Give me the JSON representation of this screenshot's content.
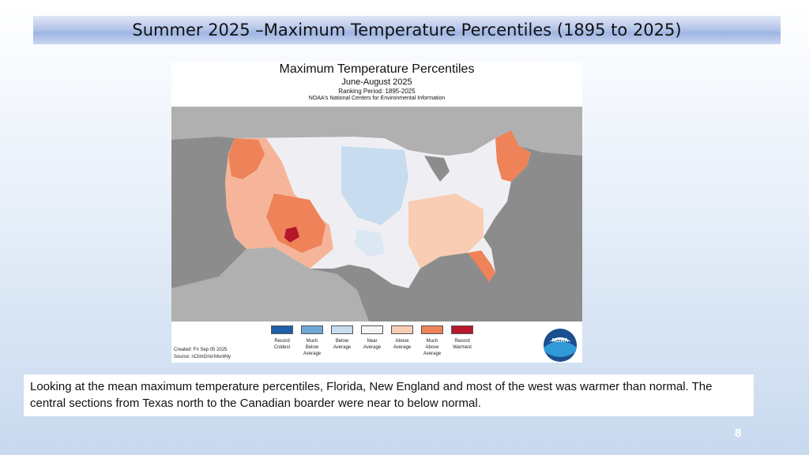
{
  "slide": {
    "title": "Summer 2025 –Maximum Temperature Percentiles (1895 to 2025)",
    "caption": "Looking at the mean maximum temperature percentiles, Florida, New England and most of the west was warmer than normal.  The central sections from Texas north to the Canadian boarder were near to below normal.",
    "page_number": "8"
  },
  "map": {
    "title": "Maximum Temperature Percentiles",
    "subtitle": "June-August 2025",
    "ranking_period": "Ranking Period: 1895-2025",
    "agency": "NOAA's National Centers for Environmental Information",
    "created": "Created: Fri Sep 05 2025",
    "source": "Source: nClimGrid-Monthly",
    "logo_text": "NOAA",
    "legend": [
      {
        "label": "Record\nColdest",
        "color": "#1f5fa8"
      },
      {
        "label": "Much\nBelow\nAverage",
        "color": "#6fa8d6"
      },
      {
        "label": "Below\nAverage",
        "color": "#c7dcef"
      },
      {
        "label": "Near\nAverage",
        "color": "#f4f4f4"
      },
      {
        "label": "Above\nAverage",
        "color": "#f9cdb3"
      },
      {
        "label": "Much\nAbove\nAverage",
        "color": "#ee8258"
      },
      {
        "label": "Record\nWarmest",
        "color": "#b5172b"
      }
    ]
  }
}
